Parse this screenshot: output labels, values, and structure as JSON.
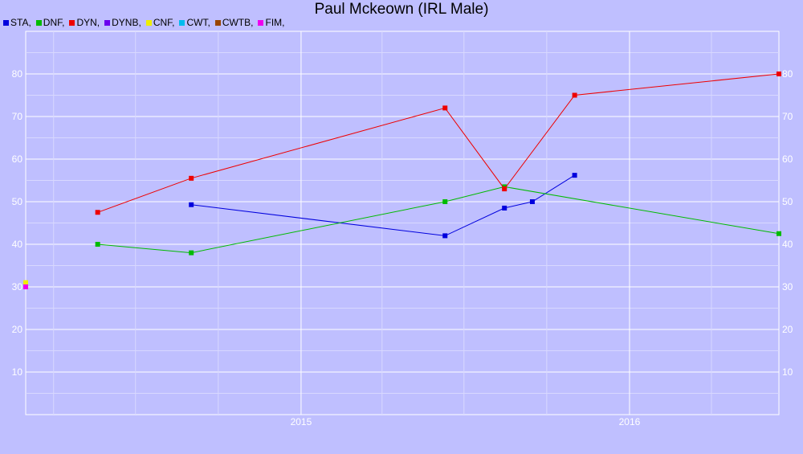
{
  "title": "Paul Mckeown (IRL Male)",
  "legend": [
    {
      "label": "STA,",
      "color": "#0000dd"
    },
    {
      "label": "DNF,",
      "color": "#00bb00"
    },
    {
      "label": "DYN,",
      "color": "#ee0000"
    },
    {
      "label": "DYNB,",
      "color": "#6a00ee"
    },
    {
      "label": "CNF,",
      "color": "#eeee00"
    },
    {
      "label": "CWT,",
      "color": "#00bbee"
    },
    {
      "label": "CWTB,",
      "color": "#994400"
    },
    {
      "label": "FIM,",
      "color": "#ee00ee"
    }
  ],
  "chart_data": {
    "type": "line",
    "title": "Paul Mckeown (IRL Male)",
    "xlabel": "",
    "ylabel": "",
    "ylim": [
      0,
      90
    ],
    "yticks": [
      10,
      20,
      30,
      40,
      50,
      60,
      70,
      80
    ],
    "xlim": [
      "2014-03-01",
      "2016-06-15"
    ],
    "xticks": [
      {
        "date": "2015-01-01",
        "label": "2015"
      },
      {
        "date": "2016-01-01",
        "label": "2016"
      }
    ],
    "grid": true,
    "legend_position": "top-left",
    "series": [
      {
        "name": "STA",
        "color": "#0000dd",
        "points": [
          {
            "x": "2014-09-01",
            "y": 49.3
          },
          {
            "x": "2015-06-10",
            "y": 42.0
          },
          {
            "x": "2015-08-15",
            "y": 48.5
          },
          {
            "x": "2015-09-15",
            "y": 50.0
          },
          {
            "x": "2015-11-01",
            "y": 56.2
          }
        ]
      },
      {
        "name": "DNF",
        "color": "#00bb00",
        "points": [
          {
            "x": "2014-05-20",
            "y": 40.0
          },
          {
            "x": "2014-09-01",
            "y": 38.0
          },
          {
            "x": "2015-06-10",
            "y": 50.0
          },
          {
            "x": "2015-08-15",
            "y": 53.5
          },
          {
            "x": "2016-06-15",
            "y": 42.5
          }
        ]
      },
      {
        "name": "DYN",
        "color": "#ee0000",
        "points": [
          {
            "x": "2014-05-20",
            "y": 47.5
          },
          {
            "x": "2014-09-01",
            "y": 55.5
          },
          {
            "x": "2015-06-10",
            "y": 72.0
          },
          {
            "x": "2015-08-15",
            "y": 53.0
          },
          {
            "x": "2015-11-01",
            "y": 75.0
          },
          {
            "x": "2016-06-15",
            "y": 80.0
          }
        ]
      },
      {
        "name": "CNF",
        "color": "#eeee00",
        "points": [
          {
            "x": "2014-03-01",
            "y": 31.0
          }
        ]
      },
      {
        "name": "FIM",
        "color": "#ee00ee",
        "points": [
          {
            "x": "2014-03-01",
            "y": 30.0
          }
        ]
      }
    ]
  }
}
